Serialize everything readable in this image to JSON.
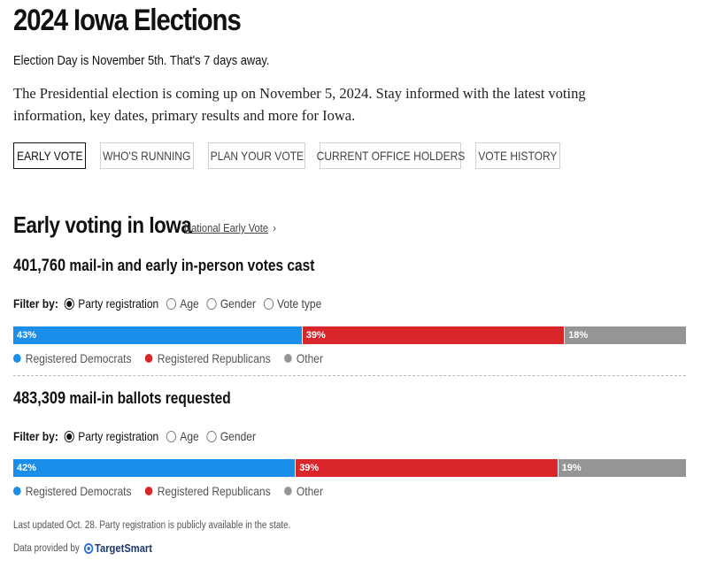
{
  "header": {
    "title": "2024 Iowa Elections",
    "subtitle": "Election Day is November 5th. That's 7 days away.",
    "intro": "The Presidential election is coming up on November 5, 2024. Stay informed with the latest voting information, key dates, primary results and more for Iowa."
  },
  "tabs": [
    {
      "label": "EARLY VOTE",
      "active": true
    },
    {
      "label": "WHO'S RUNNING",
      "active": false
    },
    {
      "label": "PLAN YOUR VOTE",
      "active": false
    },
    {
      "label": "CURRENT OFFICE HOLDERS",
      "active": false
    },
    {
      "label": "VOTE HISTORY",
      "active": false
    }
  ],
  "early": {
    "heading": "Early voting in Iowa",
    "national_link": "National Early Vote",
    "chevron": "›"
  },
  "votes_cast": {
    "count": "401,760",
    "label": "mail-in and early in-person votes cast",
    "filter_label": "Filter by:",
    "options": [
      "Party registration",
      "Age",
      "Gender",
      "Vote type"
    ],
    "selected": "Party registration",
    "segments": [
      {
        "label": "43%",
        "value": 43,
        "color": "#1a8ee8"
      },
      {
        "label": "39%",
        "value": 39,
        "color": "#d8262b"
      },
      {
        "label": "18%",
        "value": 18,
        "color": "#959595"
      }
    ],
    "legend": [
      "Registered Democrats",
      "Registered Republicans",
      "Other"
    ]
  },
  "ballots_requested": {
    "count": "483,309",
    "label": "mail-in ballots requested",
    "filter_label": "Filter by:",
    "options": [
      "Party registration",
      "Age",
      "Gender"
    ],
    "selected": "Party registration",
    "segments": [
      {
        "label": "42%",
        "value": 42,
        "color": "#1a8ee8"
      },
      {
        "label": "39%",
        "value": 39,
        "color": "#d8262b"
      },
      {
        "label": "19%",
        "value": 19,
        "color": "#959595"
      }
    ],
    "legend": [
      "Registered Democrats",
      "Registered Republicans",
      "Other"
    ]
  },
  "colors": {
    "democrat": "#1a8ee8",
    "republican": "#d8262b",
    "other": "#959595"
  },
  "footer": {
    "updated": "Last updated Oct. 28. Party registration is publicly available in the state.",
    "provided_by": "Data provided by",
    "provider": "TargetSmart"
  }
}
